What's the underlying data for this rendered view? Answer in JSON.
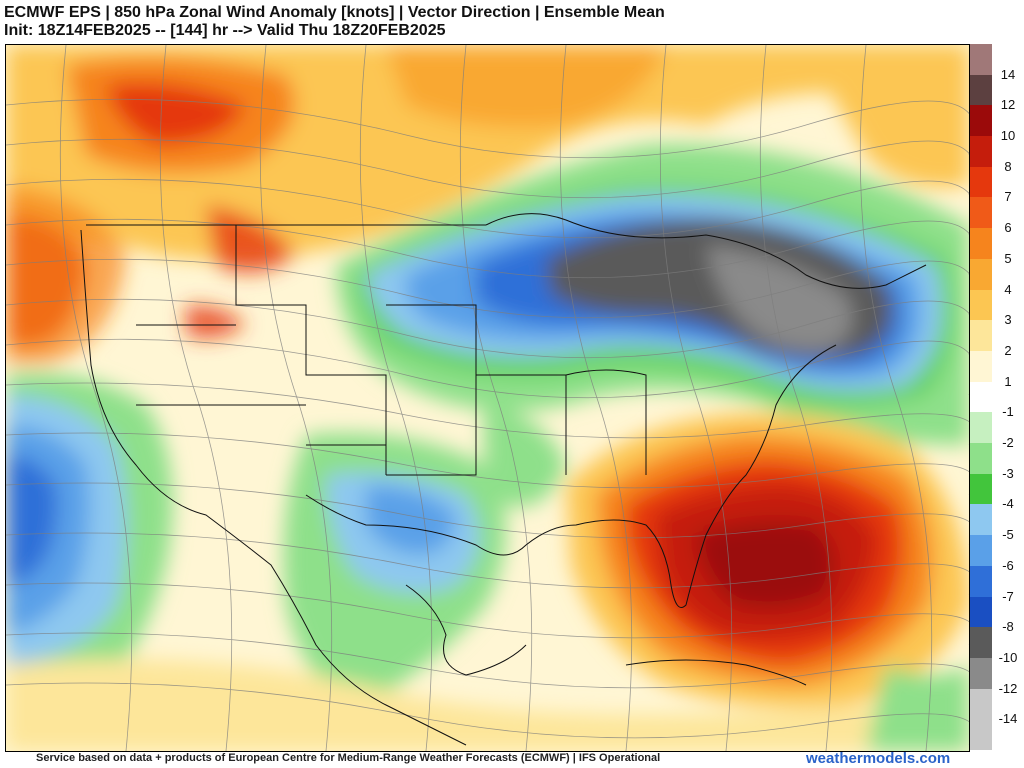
{
  "title": {
    "line1": "ECMWF EPS | 850 hPa Zonal Wind Anomaly [knots] | Vector Direction | Ensemble Mean",
    "line2": "Init: 18Z14FEB2025 -- [144] hr --> Valid Thu 18Z20FEB2025"
  },
  "colorbar": {
    "labels": [
      "14",
      "12",
      "10",
      "8",
      "7",
      "6",
      "5",
      "4",
      "3",
      "2",
      "1",
      "-1",
      "-2",
      "-3",
      "-4",
      "-5",
      "-6",
      "-7",
      "-8",
      "-10",
      "-12",
      "-14"
    ],
    "colors": [
      "#a07878",
      "#5c4040",
      "#9b0a0a",
      "#c51d0c",
      "#e5380d",
      "#f05a18",
      "#f6841d",
      "#f9a832",
      "#fcc652",
      "#fde69a",
      "#fff6d4",
      "#ffffff",
      "#c6f0c0",
      "#8ee08a",
      "#42c53c",
      "#8ec8f0",
      "#5aa0e8",
      "#2f6fd8",
      "#1a4fc2",
      "#5a5a5a",
      "#8a8a8a",
      "#c8c8c8"
    ]
  },
  "map": {
    "palette": {
      "strong_positive": "#b81a0c",
      "positive": "#f0761c",
      "weak_positive": "#fcc652",
      "neutral": "#ffffff",
      "weak_negative": "#8ee08a",
      "negative": "#5aa0e8",
      "strong_negative": "#666666"
    },
    "features": [
      "southeast-us-positive-anomaly",
      "great-lakes-negative-anomaly",
      "pacific-northwest-positive-anomaly",
      "eastern-pacific-negative-anomaly"
    ]
  },
  "footer": {
    "credit": "Service based on data + products of European Centre for Medium-Range Weather Forecasts (ECMWF) | IFS Operational",
    "site": "weathermodels.com"
  }
}
